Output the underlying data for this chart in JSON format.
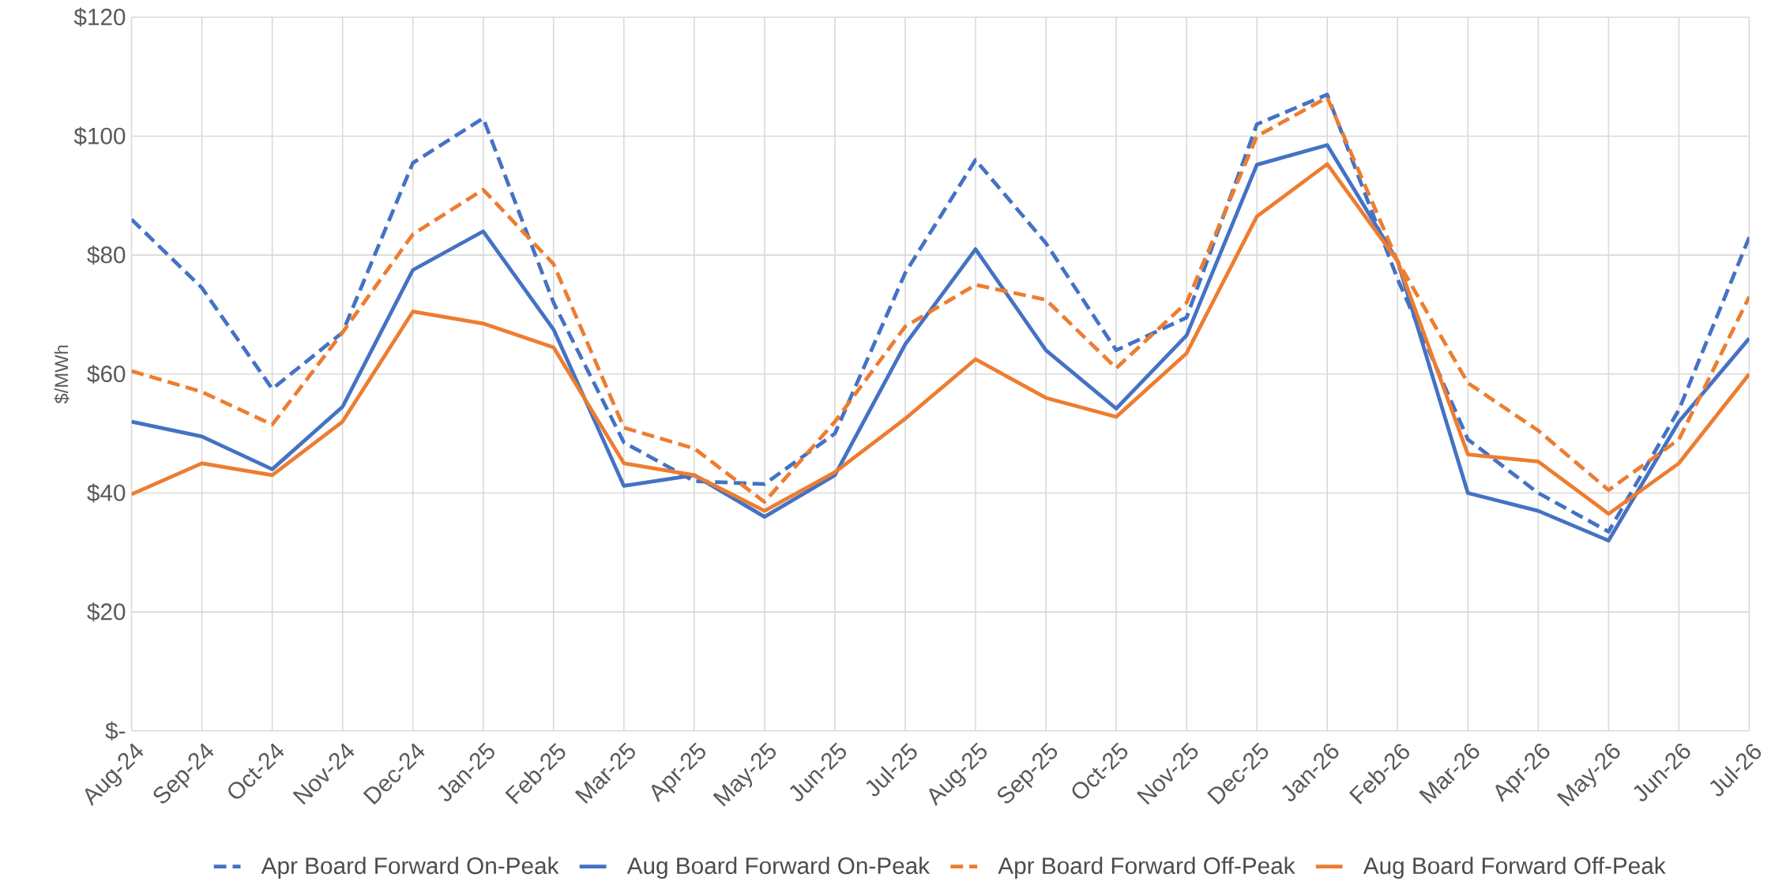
{
  "chart_data": {
    "type": "line",
    "ylabel": "$/MWh",
    "categories": [
      "Aug-24",
      "Sep-24",
      "Oct-24",
      "Nov-24",
      "Dec-24",
      "Jan-25",
      "Feb-25",
      "Mar-25",
      "Apr-25",
      "May-25",
      "Jun-25",
      "Jul-25",
      "Aug-25",
      "Sep-25",
      "Oct-25",
      "Nov-25",
      "Dec-25",
      "Jan-26",
      "Feb-26",
      "Mar-26",
      "Apr-26",
      "May-26",
      "Jun-26",
      "Jul-26"
    ],
    "series": [
      {
        "name": "Apr Board Forward On-Peak",
        "color": "#4472c4",
        "line_style": "dashed",
        "values": [
          86,
          74.5,
          57.5,
          67,
          95.5,
          103,
          72,
          48.5,
          42,
          41.5,
          50,
          77,
          96,
          82,
          64,
          69.5,
          102,
          107,
          76,
          49,
          40,
          33.5,
          54,
          83
        ]
      },
      {
        "name": "Aug Board Forward On-Peak",
        "color": "#4472c4",
        "line_style": "solid",
        "values": [
          52,
          49.5,
          44,
          54.5,
          77.5,
          84,
          67.5,
          41.2,
          43,
          36,
          43,
          65,
          81,
          64,
          54.2,
          66.5,
          95.2,
          98.5,
          79,
          40,
          37,
          32,
          52,
          66
        ]
      },
      {
        "name": "Apr Board Forward Off-Peak",
        "color": "#ed7d31",
        "line_style": "dashed",
        "values": [
          60.5,
          57,
          51.5,
          67,
          83.5,
          91,
          78.5,
          51,
          47.5,
          38.5,
          52,
          68,
          75,
          72.5,
          61,
          72,
          100,
          106.5,
          79,
          58.5,
          50.5,
          40.5,
          49,
          73
        ]
      },
      {
        "name": "Aug Board Forward Off-Peak",
        "color": "#ed7d31",
        "line_style": "solid",
        "values": [
          39.8,
          45,
          43,
          52,
          70.5,
          68.5,
          64.5,
          45,
          43,
          37,
          43.5,
          52.5,
          62.5,
          56,
          52.8,
          63.5,
          86.5,
          95.3,
          79,
          46.5,
          45.3,
          36.5,
          45,
          60
        ]
      }
    ],
    "ylim": [
      0,
      120
    ],
    "yticks": [
      {
        "value": 0,
        "label": "$-"
      },
      {
        "value": 20,
        "label": "$20"
      },
      {
        "value": 40,
        "label": "$40"
      },
      {
        "value": 60,
        "label": "$60"
      },
      {
        "value": 80,
        "label": "$80"
      },
      {
        "value": 100,
        "label": "$100"
      },
      {
        "value": 120,
        "label": "$120"
      }
    ],
    "grid": true,
    "legend": "bottom",
    "marker": "none"
  }
}
